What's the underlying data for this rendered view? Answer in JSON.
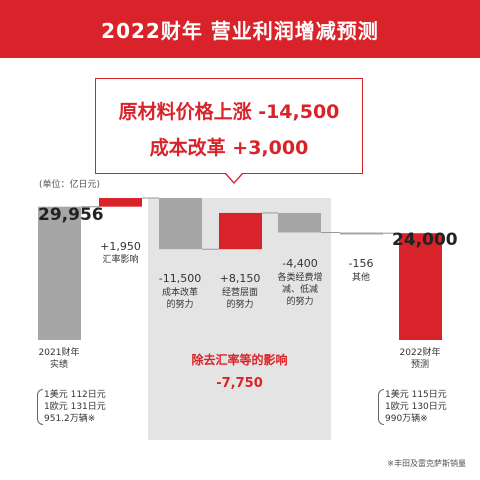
{
  "header": {
    "title": "2022财年 营业利润增减预测"
  },
  "callout": {
    "line1": "原材料价格上涨 -14,500",
    "line2": "成本改革 +3,000"
  },
  "unit_label": "(单位：亿日元)",
  "highlight": {
    "label": "除去汇率等的影响",
    "value": "-7,750"
  },
  "notes": {
    "left": [
      "1美元 112日元",
      "1欧元 131日元",
      "951.2万辆※"
    ],
    "right": [
      "1美元 115日元",
      "1欧元 130日元",
      "990万辆※"
    ]
  },
  "footnote": "※丰田及雷克萨斯销量",
  "colors": {
    "brand_red": "#d9232a",
    "gray_bar": "#a6a6a6",
    "shade": "#e4e4e4"
  },
  "chart_data": {
    "type": "bar",
    "subtype": "waterfall",
    "title": "2022财年 营业利润增减预测",
    "unit": "亿日元",
    "steps": [
      {
        "label": "2021财年\n实绩",
        "display": "29,956",
        "value": 29956,
        "kind": "total",
        "color": "gray"
      },
      {
        "label": "汇率影响",
        "display": "+1,950",
        "value": 1950,
        "kind": "delta",
        "color": "red"
      },
      {
        "label": "成本改革\n的努力",
        "display": "-11,500",
        "value": -11500,
        "kind": "delta",
        "color": "gray"
      },
      {
        "label": "经营层面\n的努力",
        "display": "+8,150",
        "value": 8150,
        "kind": "delta",
        "color": "red"
      },
      {
        "label": "各类经费增\n减、低减\n的努力",
        "display": "-4,400",
        "value": -4400,
        "kind": "delta",
        "color": "gray"
      },
      {
        "label": "其他",
        "display": "-156",
        "value": -156,
        "kind": "delta",
        "color": "gray"
      },
      {
        "label": "2022财年\n预测",
        "display": "24,000",
        "value": 24000,
        "kind": "total",
        "color": "red"
      }
    ]
  }
}
